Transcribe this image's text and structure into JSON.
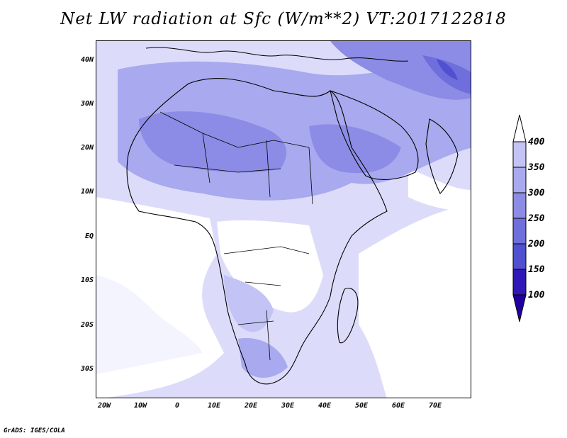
{
  "title": "Net LW radiation at Sfc (W/m**2) VT:2017122818",
  "footer": "GrADS: IGES/COLA",
  "lat_labels": [
    "40N",
    "30N",
    "20N",
    "10N",
    "EQ",
    "10S",
    "20S",
    "30S"
  ],
  "lon_labels": [
    "20W",
    "10W",
    "0",
    "10E",
    "20E",
    "30E",
    "40E",
    "50E",
    "60E",
    "70E"
  ],
  "colorbar": {
    "labels": [
      "400",
      "350",
      "300",
      "250",
      "200",
      "150",
      "100"
    ],
    "colors": [
      "#dcdcfa",
      "#c3c3f5",
      "#a9a9ef",
      "#8c8ce6",
      "#6e6edc",
      "#5050d0",
      "#3018b8",
      "#2000a0"
    ]
  },
  "chart_data": {
    "type": "heatmap",
    "variable": "Net LW radiation at Sfc",
    "units": "W/m**2",
    "valid_time": "2017122818",
    "lat_range": [
      -37,
      45
    ],
    "lon_range": [
      -22,
      80
    ],
    "contour_levels": [
      100,
      150,
      200,
      250,
      300,
      350,
      400
    ]
  }
}
